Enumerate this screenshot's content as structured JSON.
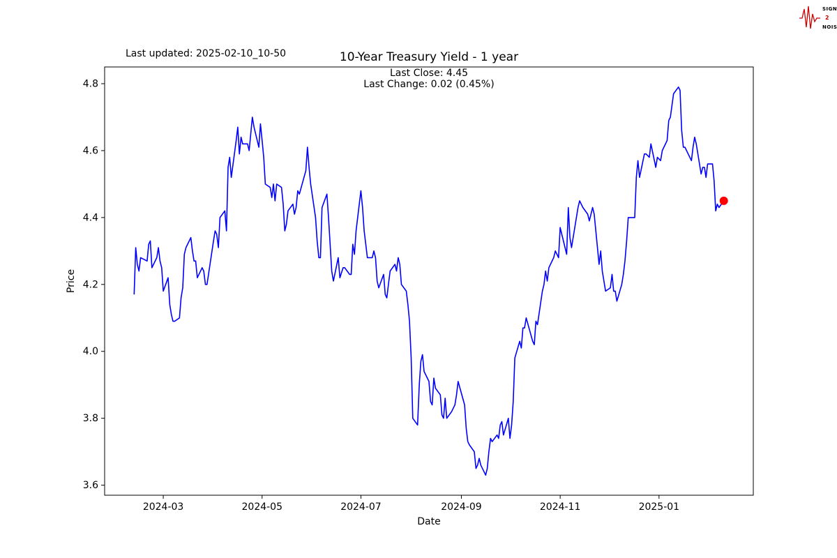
{
  "header": {
    "last_updated": "Last updated: 2025-02-10_10-50",
    "subtitle_close": "Last Close: 4.45",
    "subtitle_change": "Last Change: 0.02 (0.45%)"
  },
  "logo": {
    "top": "SIGNAL",
    "mid": "2",
    "bottom": "NOISE"
  },
  "chart_data": {
    "type": "line",
    "title": "10-Year Treasury Yield - 1 year",
    "xlabel": "Date",
    "ylabel": "Price",
    "legend": "none",
    "grid": false,
    "line_color": "#0000ff",
    "marker_color": "#ff0000",
    "ylim": [
      3.57,
      4.85
    ],
    "yticks": [
      3.6,
      3.8,
      4.0,
      4.2,
      4.4,
      4.6,
      4.8
    ],
    "xticks": [
      {
        "label": "2024-03",
        "date": "2024-03-01"
      },
      {
        "label": "2024-05",
        "date": "2024-05-01"
      },
      {
        "label": "2024-07",
        "date": "2024-07-01"
      },
      {
        "label": "2024-09",
        "date": "2024-09-01"
      },
      {
        "label": "2024-11",
        "date": "2024-11-01"
      },
      {
        "label": "2025-01",
        "date": "2025-01-01"
      }
    ],
    "last_close": 4.45,
    "last_change": "0.02 (0.45%)",
    "x": [
      "2024-02-12",
      "2024-02-13",
      "2024-02-14",
      "2024-02-15",
      "2024-02-16",
      "2024-02-20",
      "2024-02-21",
      "2024-02-22",
      "2024-02-23",
      "2024-02-26",
      "2024-02-27",
      "2024-02-28",
      "2024-02-29",
      "2024-03-01",
      "2024-03-04",
      "2024-03-05",
      "2024-03-06",
      "2024-03-07",
      "2024-03-08",
      "2024-03-11",
      "2024-03-12",
      "2024-03-13",
      "2024-03-14",
      "2024-03-15",
      "2024-03-18",
      "2024-03-19",
      "2024-03-20",
      "2024-03-21",
      "2024-03-22",
      "2024-03-25",
      "2024-03-26",
      "2024-03-27",
      "2024-03-28",
      "2024-04-01",
      "2024-04-02",
      "2024-04-03",
      "2024-04-04",
      "2024-04-05",
      "2024-04-08",
      "2024-04-09",
      "2024-04-10",
      "2024-04-11",
      "2024-04-12",
      "2024-04-15",
      "2024-04-16",
      "2024-04-17",
      "2024-04-18",
      "2024-04-19",
      "2024-04-22",
      "2024-04-23",
      "2024-04-24",
      "2024-04-25",
      "2024-04-26",
      "2024-04-29",
      "2024-04-30",
      "2024-05-01",
      "2024-05-02",
      "2024-05-03",
      "2024-05-06",
      "2024-05-07",
      "2024-05-08",
      "2024-05-09",
      "2024-05-10",
      "2024-05-13",
      "2024-05-14",
      "2024-05-15",
      "2024-05-16",
      "2024-05-17",
      "2024-05-20",
      "2024-05-21",
      "2024-05-22",
      "2024-05-23",
      "2024-05-24",
      "2024-05-28",
      "2024-05-29",
      "2024-05-30",
      "2024-05-31",
      "2024-06-03",
      "2024-06-04",
      "2024-06-05",
      "2024-06-06",
      "2024-06-07",
      "2024-06-10",
      "2024-06-11",
      "2024-06-12",
      "2024-06-13",
      "2024-06-14",
      "2024-06-17",
      "2024-06-18",
      "2024-06-20",
      "2024-06-21",
      "2024-06-24",
      "2024-06-25",
      "2024-06-26",
      "2024-06-27",
      "2024-06-28",
      "2024-07-01",
      "2024-07-02",
      "2024-07-03",
      "2024-07-05",
      "2024-07-08",
      "2024-07-09",
      "2024-07-10",
      "2024-07-11",
      "2024-07-12",
      "2024-07-15",
      "2024-07-16",
      "2024-07-17",
      "2024-07-18",
      "2024-07-19",
      "2024-07-22",
      "2024-07-23",
      "2024-07-24",
      "2024-07-25",
      "2024-07-26",
      "2024-07-29",
      "2024-07-30",
      "2024-07-31",
      "2024-08-01",
      "2024-08-02",
      "2024-08-05",
      "2024-08-06",
      "2024-08-07",
      "2024-08-08",
      "2024-08-09",
      "2024-08-12",
      "2024-08-13",
      "2024-08-14",
      "2024-08-15",
      "2024-08-16",
      "2024-08-19",
      "2024-08-20",
      "2024-08-21",
      "2024-08-22",
      "2024-08-23",
      "2024-08-26",
      "2024-08-27",
      "2024-08-28",
      "2024-08-29",
      "2024-08-30",
      "2024-09-03",
      "2024-09-04",
      "2024-09-05",
      "2024-09-06",
      "2024-09-09",
      "2024-09-10",
      "2024-09-11",
      "2024-09-12",
      "2024-09-13",
      "2024-09-16",
      "2024-09-17",
      "2024-09-18",
      "2024-09-19",
      "2024-09-20",
      "2024-09-23",
      "2024-09-24",
      "2024-09-25",
      "2024-09-26",
      "2024-09-27",
      "2024-09-30",
      "2024-10-01",
      "2024-10-02",
      "2024-10-03",
      "2024-10-04",
      "2024-10-07",
      "2024-10-08",
      "2024-10-09",
      "2024-10-10",
      "2024-10-11",
      "2024-10-15",
      "2024-10-16",
      "2024-10-17",
      "2024-10-18",
      "2024-10-21",
      "2024-10-22",
      "2024-10-23",
      "2024-10-24",
      "2024-10-25",
      "2024-10-28",
      "2024-10-29",
      "2024-10-30",
      "2024-10-31",
      "2024-11-01",
      "2024-11-04",
      "2024-11-05",
      "2024-11-06",
      "2024-11-07",
      "2024-11-08",
      "2024-11-12",
      "2024-11-13",
      "2024-11-14",
      "2024-11-15",
      "2024-11-18",
      "2024-11-19",
      "2024-11-20",
      "2024-11-21",
      "2024-11-22",
      "2024-11-25",
      "2024-11-26",
      "2024-11-27",
      "2024-11-29",
      "2024-12-02",
      "2024-12-03",
      "2024-12-04",
      "2024-12-05",
      "2024-12-06",
      "2024-12-09",
      "2024-12-10",
      "2024-12-11",
      "2024-12-12",
      "2024-12-13",
      "2024-12-16",
      "2024-12-17",
      "2024-12-18",
      "2024-12-19",
      "2024-12-20",
      "2024-12-23",
      "2024-12-24",
      "2024-12-26",
      "2024-12-27",
      "2024-12-30",
      "2024-12-31",
      "2025-01-02",
      "2025-01-03",
      "2025-01-06",
      "2025-01-07",
      "2025-01-08",
      "2025-01-10",
      "2025-01-13",
      "2025-01-14",
      "2025-01-15",
      "2025-01-16",
      "2025-01-17",
      "2025-01-21",
      "2025-01-22",
      "2025-01-23",
      "2025-01-24",
      "2025-01-27",
      "2025-01-28",
      "2025-01-29",
      "2025-01-30",
      "2025-01-31",
      "2025-02-03",
      "2025-02-04",
      "2025-02-05",
      "2025-02-06",
      "2025-02-07",
      "2025-02-10"
    ],
    "values": [
      4.17,
      4.31,
      4.26,
      4.24,
      4.28,
      4.27,
      4.32,
      4.33,
      4.25,
      4.28,
      4.31,
      4.27,
      4.25,
      4.18,
      4.22,
      4.14,
      4.11,
      4.09,
      4.09,
      4.1,
      4.16,
      4.19,
      4.29,
      4.31,
      4.34,
      4.3,
      4.27,
      4.27,
      4.22,
      4.25,
      4.24,
      4.2,
      4.2,
      4.33,
      4.36,
      4.35,
      4.31,
      4.4,
      4.42,
      4.36,
      4.55,
      4.58,
      4.52,
      4.63,
      4.67,
      4.59,
      4.64,
      4.62,
      4.62,
      4.6,
      4.65,
      4.7,
      4.67,
      4.61,
      4.68,
      4.63,
      4.58,
      4.5,
      4.49,
      4.46,
      4.5,
      4.45,
      4.5,
      4.49,
      4.44,
      4.36,
      4.38,
      4.42,
      4.44,
      4.41,
      4.43,
      4.48,
      4.47,
      4.54,
      4.61,
      4.55,
      4.5,
      4.4,
      4.33,
      4.28,
      4.28,
      4.43,
      4.47,
      4.4,
      4.32,
      4.24,
      4.21,
      4.28,
      4.22,
      4.25,
      4.25,
      4.23,
      4.23,
      4.32,
      4.29,
      4.36,
      4.48,
      4.43,
      4.36,
      4.28,
      4.28,
      4.3,
      4.28,
      4.21,
      4.19,
      4.23,
      4.17,
      4.16,
      4.2,
      4.24,
      4.26,
      4.24,
      4.28,
      4.26,
      4.2,
      4.18,
      4.14,
      4.09,
      3.98,
      3.8,
      3.78,
      3.9,
      3.97,
      3.99,
      3.94,
      3.91,
      3.85,
      3.84,
      3.92,
      3.89,
      3.87,
      3.81,
      3.8,
      3.86,
      3.8,
      3.82,
      3.83,
      3.84,
      3.87,
      3.91,
      3.84,
      3.77,
      3.73,
      3.72,
      3.7,
      3.65,
      3.66,
      3.68,
      3.66,
      3.63,
      3.65,
      3.7,
      3.74,
      3.73,
      3.75,
      3.74,
      3.78,
      3.79,
      3.75,
      3.8,
      3.74,
      3.78,
      3.85,
      3.98,
      4.03,
      4.01,
      4.07,
      4.07,
      4.1,
      4.03,
      4.02,
      4.09,
      4.08,
      4.18,
      4.2,
      4.24,
      4.21,
      4.25,
      4.28,
      4.3,
      4.29,
      4.28,
      4.37,
      4.31,
      4.29,
      4.43,
      4.34,
      4.31,
      4.43,
      4.45,
      4.44,
      4.43,
      4.41,
      4.39,
      4.41,
      4.43,
      4.41,
      4.26,
      4.3,
      4.24,
      4.18,
      4.19,
      4.23,
      4.18,
      4.18,
      4.15,
      4.2,
      4.23,
      4.27,
      4.33,
      4.4,
      4.4,
      4.4,
      4.52,
      4.57,
      4.52,
      4.59,
      4.59,
      4.58,
      4.62,
      4.55,
      4.58,
      4.57,
      4.6,
      4.63,
      4.69,
      4.7,
      4.77,
      4.79,
      4.78,
      4.66,
      4.61,
      4.61,
      4.57,
      4.61,
      4.64,
      4.62,
      4.53,
      4.55,
      4.55,
      4.52,
      4.56,
      4.56,
      4.51,
      4.42,
      4.44,
      4.43,
      4.45
    ]
  }
}
